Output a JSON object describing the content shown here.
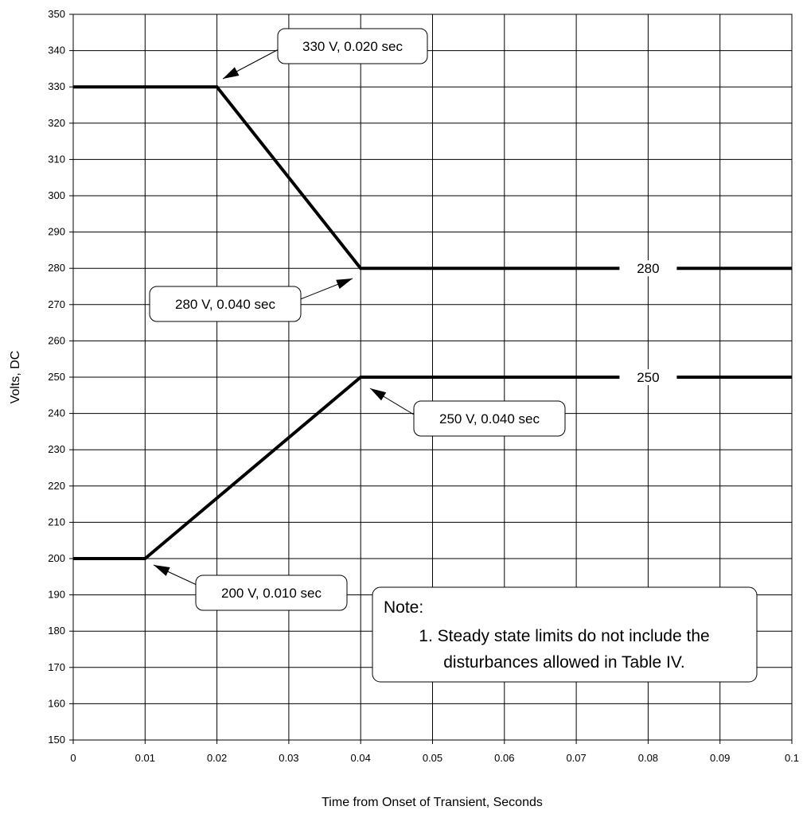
{
  "chart_data": {
    "type": "line",
    "xlabel": "Time from Onset of Transient, Seconds",
    "ylabel": "Volts, DC",
    "xlim": [
      0,
      0.1
    ],
    "ylim": [
      150,
      350
    ],
    "x_ticks": [
      "0",
      "0.01",
      "0.02",
      "0.03",
      "0.04",
      "0.05",
      "0.06",
      "0.07",
      "0.08",
      "0.09",
      "0.1"
    ],
    "y_ticks": [
      "150",
      "160",
      "170",
      "180",
      "190",
      "200",
      "210",
      "220",
      "230",
      "240",
      "250",
      "260",
      "270",
      "280",
      "290",
      "300",
      "310",
      "320",
      "330",
      "340",
      "350"
    ],
    "grid": true,
    "series": [
      {
        "x": [
          0,
          0.02,
          0.04,
          0.1
        ],
        "y": [
          330,
          330,
          280,
          280
        ]
      },
      {
        "x": [
          0,
          0.01,
          0.04,
          0.1
        ],
        "y": [
          200,
          200,
          250,
          250
        ]
      }
    ],
    "line_labels": [
      {
        "text": "280",
        "x": 0.08,
        "y": 280
      },
      {
        "text": "250",
        "x": 0.08,
        "y": 250
      }
    ],
    "callouts": [
      {
        "text": "330 V, 0.020 sec",
        "target": {
          "x": 0.02,
          "y": 330
        }
      },
      {
        "text": "280 V, 0.040 sec",
        "target": {
          "x": 0.04,
          "y": 280
        }
      },
      {
        "text": "250 V, 0.040 sec",
        "target": {
          "x": 0.04,
          "y": 250
        }
      },
      {
        "text": "200 V, 0.010 sec",
        "target": {
          "x": 0.01,
          "y": 200
        }
      }
    ],
    "note": {
      "title": "Note:",
      "lines": [
        "1. Steady state limits do not include the",
        "disturbances allowed in Table IV."
      ]
    },
    "colors": {
      "line": "#000000",
      "grid": "#000000",
      "background": "#ffffff"
    }
  }
}
